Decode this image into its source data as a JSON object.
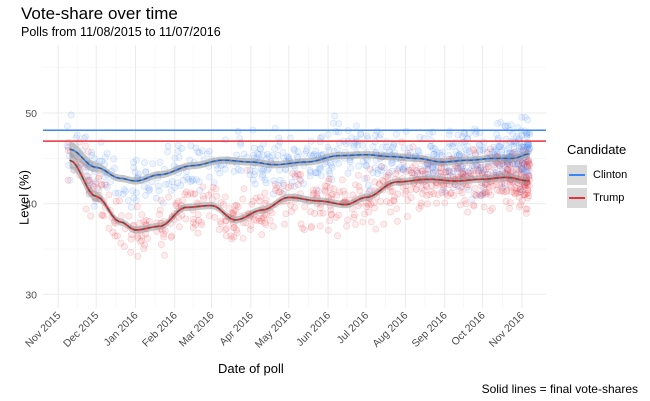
{
  "chart_data": {
    "type": "scatter",
    "title": "Vote-share over time",
    "subtitle": "Polls from 11/08/2015 to 11/07/2016",
    "xlabel": "Date of poll",
    "ylabel": "Level (%)",
    "caption": "Solid lines = final vote-shares",
    "legend": {
      "title": "Candidate",
      "position": "right"
    },
    "x_range": [
      "2015-10-20",
      "2016-11-20"
    ],
    "ylim": [
      28.5,
      57.5
    ],
    "y_ticks": [
      30,
      40,
      50
    ],
    "x_ticks": [
      "Nov 2015",
      "Dec 2015",
      "Jan 2016",
      "Feb 2016",
      "Mar 2016",
      "Apr 2016",
      "May 2016",
      "Jun 2016",
      "Jul 2016",
      "Aug 2016",
      "Sep 2016",
      "Oct 2016",
      "Nov 2016"
    ],
    "x_tick_dates": [
      "2015-11-01",
      "2015-12-01",
      "2016-01-01",
      "2016-02-01",
      "2016-03-01",
      "2016-04-01",
      "2016-05-01",
      "2016-06-01",
      "2016-07-01",
      "2016-08-01",
      "2016-09-01",
      "2016-10-01",
      "2016-11-01"
    ],
    "grid": true,
    "series": [
      {
        "name": "Clinton",
        "color": "#3d85f7",
        "final_vote_share": 48.1,
        "trend_x": [
          "2015-11-10",
          "2015-12-01",
          "2015-12-20",
          "2016-01-01",
          "2016-01-20",
          "2016-02-15",
          "2016-03-10",
          "2016-04-01",
          "2016-04-20",
          "2016-05-15",
          "2016-06-10",
          "2016-07-01",
          "2016-07-20",
          "2016-08-10",
          "2016-08-30",
          "2016-09-20",
          "2016-10-10",
          "2016-10-25",
          "2016-11-07"
        ],
        "trend_y": [
          46.0,
          44.0,
          42.8,
          42.5,
          43.2,
          44.2,
          44.8,
          44.6,
          44.3,
          44.6,
          45.3,
          45.4,
          45.2,
          45.0,
          44.6,
          44.8,
          45.0,
          45.0,
          45.5
        ]
      },
      {
        "name": "Trump",
        "color": "#e8313b",
        "final_vote_share": 46.9,
        "trend_x": [
          "2015-11-10",
          "2015-12-01",
          "2015-12-20",
          "2016-01-01",
          "2016-01-20",
          "2016-02-10",
          "2016-03-01",
          "2016-03-20",
          "2016-04-10",
          "2016-05-01",
          "2016-05-25",
          "2016-06-15",
          "2016-07-01",
          "2016-07-25",
          "2016-08-20",
          "2016-09-10",
          "2016-09-30",
          "2016-10-20",
          "2016-11-07"
        ],
        "trend_y": [
          44.8,
          40.8,
          38.0,
          37.1,
          37.5,
          39.6,
          39.8,
          38.2,
          39.3,
          40.7,
          40.3,
          39.9,
          40.7,
          42.4,
          42.7,
          42.5,
          42.7,
          42.9,
          42.5
        ]
      }
    ]
  }
}
